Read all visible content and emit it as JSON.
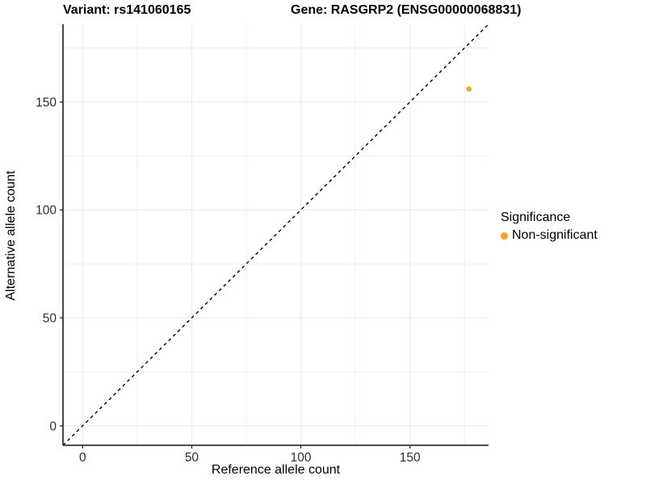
{
  "header": {
    "variant_title": "Variant: rs141060165",
    "gene_title": "Gene: RASGRP2 (ENSG00000068831)"
  },
  "chart_data": {
    "type": "scatter",
    "title": "Variant: rs141060165  Gene: RASGRP2 (ENSG00000068831)",
    "xlabel": "Reference allele count",
    "ylabel": "Alternative allele count",
    "xlim": [
      -9,
      186
    ],
    "ylim": [
      -9,
      186
    ],
    "x_ticks": [
      0,
      50,
      100,
      150
    ],
    "y_ticks": [
      0,
      50,
      100,
      150
    ],
    "x_minor_ticks": [
      25,
      75,
      125,
      175
    ],
    "y_minor_ticks": [
      25,
      75,
      125,
      175
    ],
    "grid": true,
    "reference_line": {
      "kind": "identity",
      "slope": 1,
      "intercept": 0,
      "style": "dashed",
      "color": "#000000"
    },
    "series": [
      {
        "name": "Non-significant",
        "color": "#F9A032",
        "points": [
          {
            "x": 177,
            "y": 156
          }
        ]
      }
    ],
    "legend": {
      "title": "Significance",
      "position": "right",
      "items": [
        {
          "label": "Non-significant",
          "color": "#F9A032"
        }
      ]
    },
    "colors": {
      "grid_major": "#EBEBEB",
      "grid_minor": "#EFEFEF",
      "axis_line": "#333333",
      "tick_label": "#303030",
      "background": "#FFFFFF"
    }
  }
}
